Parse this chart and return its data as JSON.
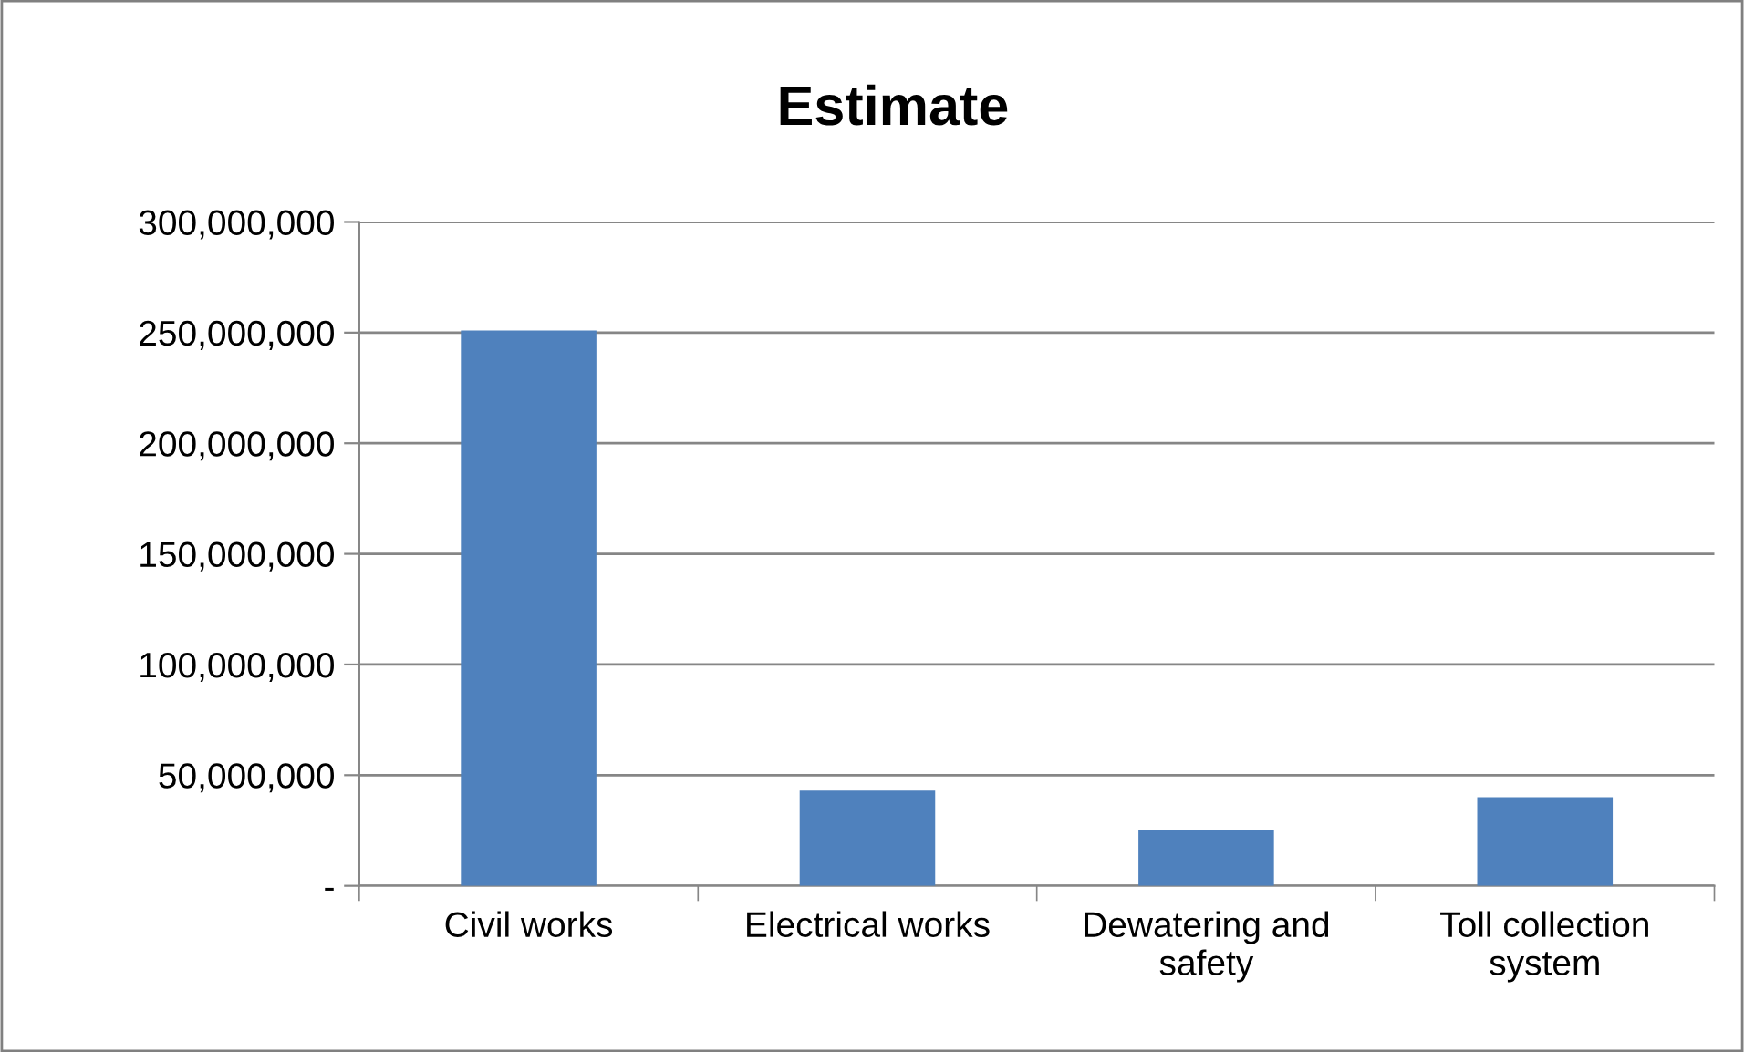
{
  "chart_data": {
    "type": "bar",
    "title": "Estimate",
    "categories": [
      "Civil works",
      "Electrical works",
      "Dewatering and safety",
      "Toll collection system"
    ],
    "values": [
      251000000,
      43000000,
      25000000,
      40000000
    ],
    "color": "#4f81bd",
    "ylim": [
      0,
      300000000
    ],
    "yticks": [
      {
        "value": 0,
        "label": "-"
      },
      {
        "value": 50000000,
        "label": "50,000,000"
      },
      {
        "value": 100000000,
        "label": "100,000,000"
      },
      {
        "value": 150000000,
        "label": "150,000,000"
      },
      {
        "value": 200000000,
        "label": "200,000,000"
      },
      {
        "value": 250000000,
        "label": "250,000,000"
      },
      {
        "value": 300000000,
        "label": "300,000,000"
      }
    ],
    "grid": "y",
    "legend": false
  }
}
